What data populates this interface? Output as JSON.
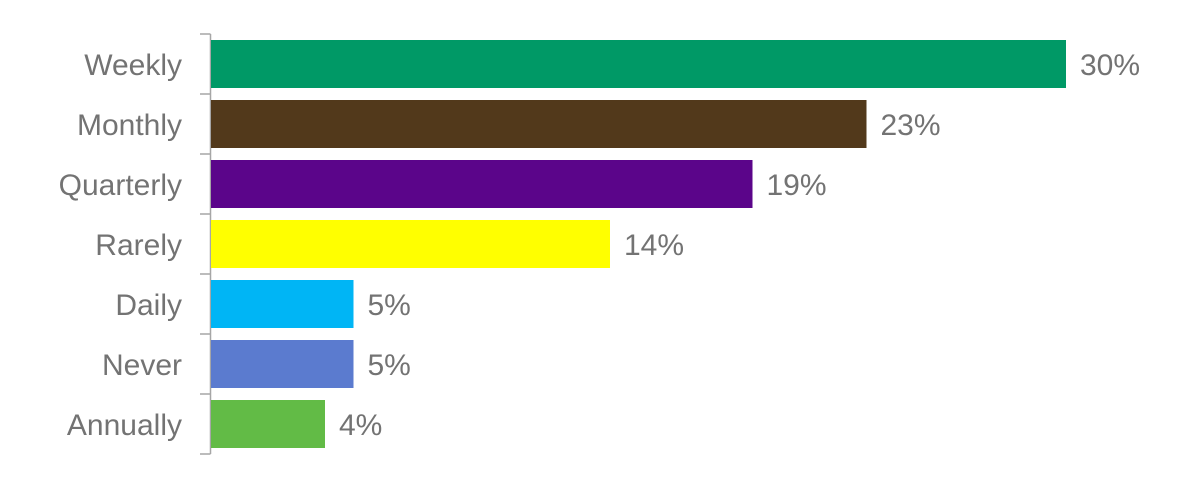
{
  "chart_data": {
    "type": "bar",
    "orientation": "horizontal",
    "categories": [
      "Weekly",
      "Monthly",
      "Quarterly",
      "Rarely",
      "Daily",
      "Never",
      "Annually"
    ],
    "values": [
      30,
      23,
      19,
      14,
      5,
      5,
      4
    ],
    "labels": [
      "30%",
      "23%",
      "19%",
      "14%",
      "5%",
      "5%",
      "4%"
    ],
    "colors": [
      "#009966",
      "#52391B",
      "#5B058A",
      "#FFFF00",
      "#00B5F5",
      "#5B7BCF",
      "#62BB46"
    ],
    "unit": "%",
    "xlim": [
      0,
      30
    ],
    "grid": false,
    "legend": "none"
  }
}
